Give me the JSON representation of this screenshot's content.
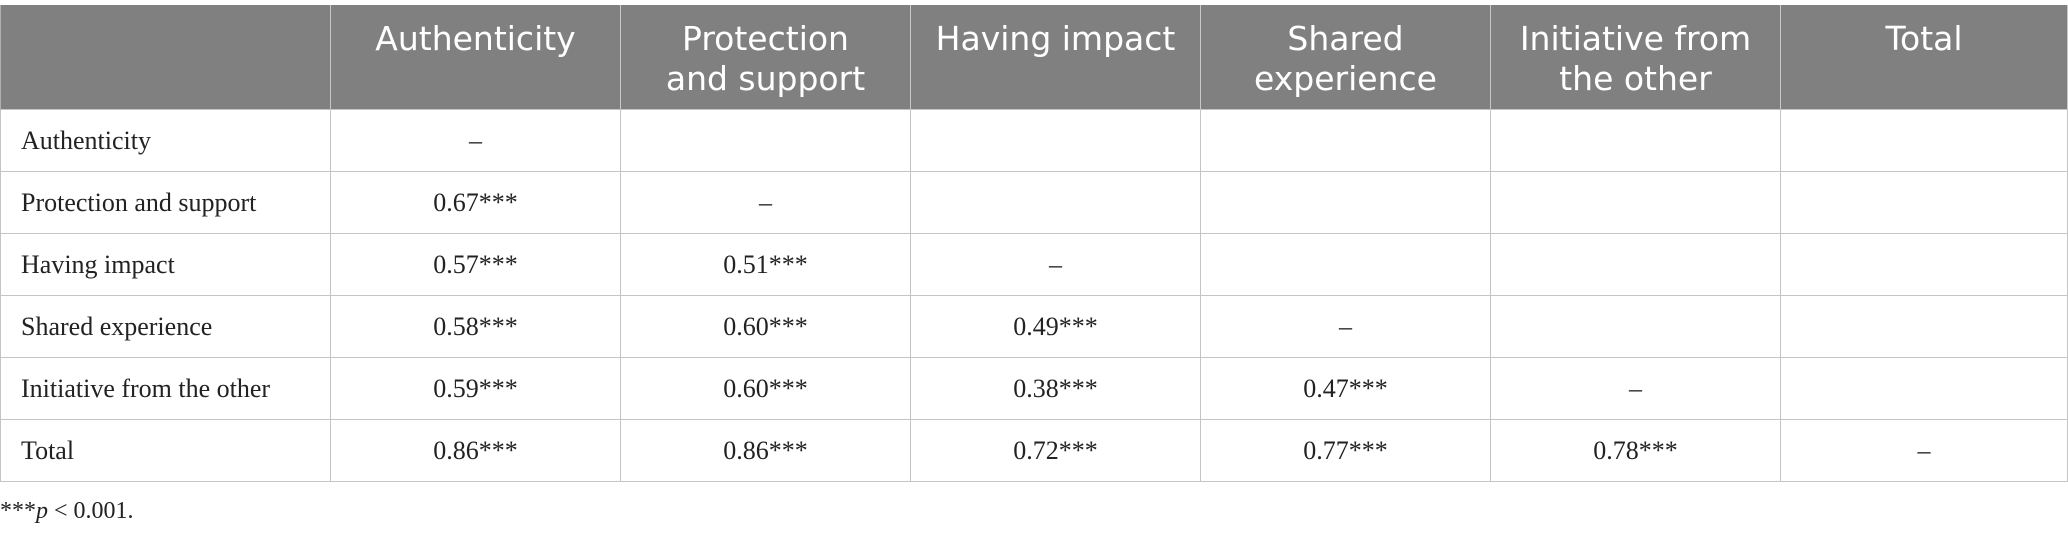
{
  "columns": [
    "",
    "Authenticity",
    "Protection\nand support",
    "Having impact",
    "Shared\nexperience",
    "Initiative from\nthe other",
    "Total"
  ],
  "rows": [
    {
      "label": "Authenticity",
      "cells": [
        "–",
        "",
        "",
        "",
        "",
        ""
      ]
    },
    {
      "label": "Protection and support",
      "cells": [
        "0.67***",
        "–",
        "",
        "",
        "",
        ""
      ]
    },
    {
      "label": "Having impact",
      "cells": [
        "0.57***",
        "0.51***",
        "–",
        "",
        "",
        ""
      ]
    },
    {
      "label": "Shared experience",
      "cells": [
        "0.58***",
        "0.60***",
        "0.49***",
        "–",
        "",
        ""
      ]
    },
    {
      "label": "Initiative from the other",
      "cells": [
        "0.59***",
        "0.60***",
        "0.38***",
        "0.47***",
        "–",
        ""
      ]
    },
    {
      "label": "Total",
      "cells": [
        "0.86***",
        "0.86***",
        "0.72***",
        "0.77***",
        "0.78***",
        "–"
      ]
    }
  ],
  "footnote": {
    "stars": "***",
    "p": "p",
    "rest": " < 0.001."
  },
  "colors": {
    "header_bg": "#808080",
    "header_text": "#ffffff",
    "border": "#c4c4c4"
  }
}
